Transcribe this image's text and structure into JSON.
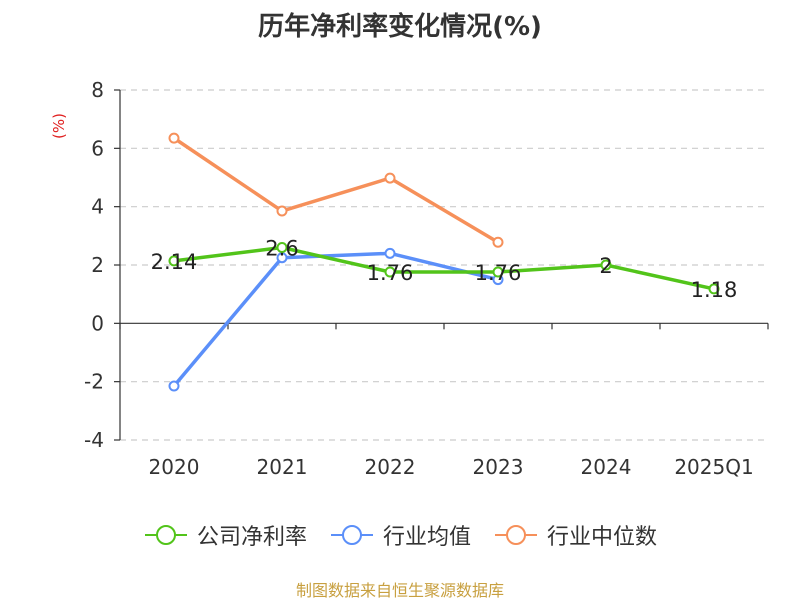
{
  "chart_data": {
    "type": "line",
    "title": "历年净利率变化情况(%)",
    "ylabel": "(%)",
    "xlabel": "",
    "categories": [
      "2020",
      "2021",
      "2022",
      "2023",
      "2024",
      "2025Q1"
    ],
    "ylim": [
      -4,
      8
    ],
    "yticks": [
      8,
      6,
      4,
      2,
      0,
      -2,
      -4
    ],
    "grid": true,
    "legend_position": "bottom",
    "series": [
      {
        "name": "公司净利率",
        "color": "#52c41a",
        "values": [
          2.14,
          2.6,
          1.76,
          1.76,
          2,
          1.18
        ],
        "labels": [
          "2.14",
          "2.6",
          "1.76",
          "1.76",
          "2",
          "1.18"
        ]
      },
      {
        "name": "行业均值",
        "color": "#5b8ff9",
        "values": [
          -2.15,
          2.25,
          2.4,
          1.5,
          null,
          null
        ]
      },
      {
        "name": "行业中位数",
        "color": "#f6905a",
        "values": [
          6.35,
          3.85,
          4.98,
          2.78,
          null,
          null
        ]
      }
    ]
  },
  "source": "制图数据来自恒生聚源数据库",
  "ylabel_color": "#e02020"
}
